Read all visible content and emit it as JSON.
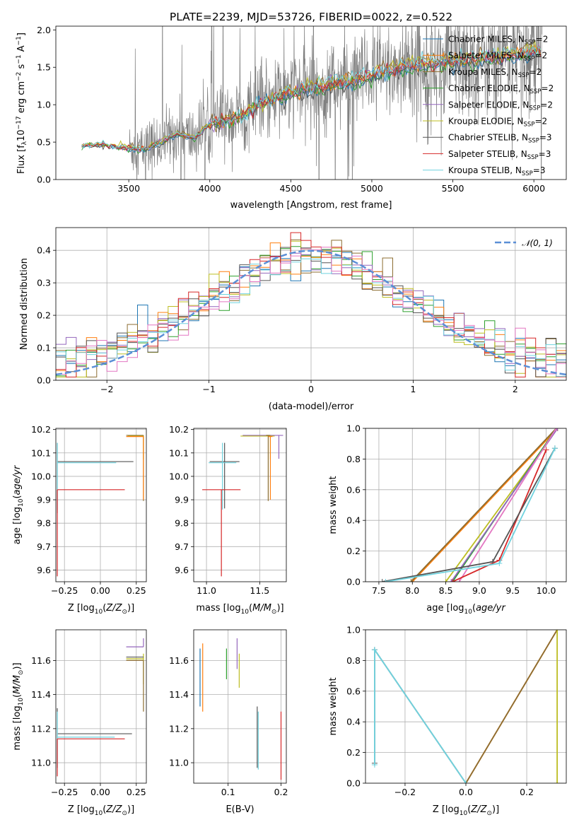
{
  "figure": {
    "title": "PLATE=2239, MJD=53726, FIBERID=0022, z=0.522"
  },
  "colors": {
    "Chabrier MILES": "#1f77b4",
    "Salpeter MILES": "#ff7f0e",
    "Kroupa MILES": "#8c6d31",
    "Chabrier ELODIE": "#2ca02c",
    "Salpeter ELODIE": "#9467bd",
    "Kroupa ELODIE": "#bcbd22",
    "Chabrier STELIB": "#555555",
    "Salpeter STELIB": "#d62728",
    "Kroupa STELIB": "#6fd3df",
    "data": "#808080",
    "gauss": "#5b8fd6",
    "pink": "#e377c2"
  },
  "chart_data": [
    {
      "id": "spectrum",
      "type": "line",
      "xlabel": "wavelength [Angstrom, rest frame]",
      "ylabel": "Flux [f$_\\lambda$10$^{-17}$ erg cm$^{-2}$ s$^{-1}$ A$^{-1}$]",
      "ylabel_parts": [
        "Flux [f",
        "λ",
        "10",
        "−17",
        " erg cm",
        "−2",
        " s",
        "−1",
        " A",
        "−1",
        "]"
      ],
      "xlim": [
        3050,
        6200
      ],
      "ylim": [
        0,
        2.05
      ],
      "xticks": [
        3500,
        4000,
        4500,
        5000,
        5500,
        6000
      ],
      "yticks": [
        0.0,
        0.5,
        1.0,
        1.5,
        2.0
      ],
      "ytick_labels": [
        "0.0",
        "0.5",
        "1.0",
        "1.5",
        "2.0"
      ],
      "legend": [
        {
          "base": "Chabrier MILES, N",
          "sub": "SSP",
          "tail": "=2"
        },
        {
          "base": "Salpeter MILES, N",
          "sub": "SSP",
          "tail": "=2"
        },
        {
          "base": "Kroupa MILES, N",
          "sub": "SSP",
          "tail": "=2"
        },
        {
          "base": "Chabrier ELODIE, N",
          "sub": "SSP",
          "tail": "=2"
        },
        {
          "base": "Salpeter ELODIE, N",
          "sub": "SSP",
          "tail": "=2"
        },
        {
          "base": "Kroupa ELODIE, N",
          "sub": "SSP",
          "tail": "=2"
        },
        {
          "base": "Chabrier STELIB, N",
          "sub": "SSP",
          "tail": "=3"
        },
        {
          "base": "Salpeter STELIB, N",
          "sub": "SSP",
          "tail": "=3"
        },
        {
          "base": "Kroupa STELIB, N",
          "sub": "SSP",
          "tail": "=3"
        }
      ],
      "legend_placement": "upper-right",
      "data_range": [
        3210,
        6050
      ],
      "model_curve": {
        "x": [
          3210,
          3300,
          3400,
          3500,
          3600,
          3700,
          3800,
          3900,
          4000,
          4100,
          4200,
          4300,
          4400,
          4500,
          4600,
          4700,
          4800,
          4900,
          5000,
          5100,
          5200,
          5300,
          5400,
          5500,
          5600,
          5700,
          5800,
          5900,
          6000,
          6050
        ],
        "y": [
          0.45,
          0.47,
          0.45,
          0.42,
          0.4,
          0.5,
          0.62,
          0.55,
          0.75,
          0.78,
          0.85,
          1.0,
          1.08,
          1.15,
          1.22,
          1.25,
          1.3,
          1.32,
          1.4,
          1.45,
          1.5,
          1.55,
          1.55,
          1.58,
          1.6,
          1.62,
          1.65,
          1.68,
          1.72,
          1.7
        ]
      }
    },
    {
      "id": "residuals",
      "type": "step",
      "xlabel": "(data-model)/error",
      "ylabel": "Normed distribution",
      "xlim": [
        -2.5,
        2.5
      ],
      "ylim": [
        0,
        0.47
      ],
      "xticks": [
        -2,
        -1,
        0,
        1,
        2
      ],
      "xtick_labels": [
        "−2",
        "−1",
        "0",
        "1",
        "2"
      ],
      "yticks": [
        0.0,
        0.1,
        0.2,
        0.3,
        0.4
      ],
      "ytick_labels": [
        "0.0",
        "0.1",
        "0.2",
        "0.3",
        "0.4"
      ],
      "legend": [
        {
          "label": "𝒩(0, 1)",
          "style": "dashed"
        }
      ],
      "legend_placement": "upper-right",
      "bins": [
        -2.5,
        2.5,
        50
      ],
      "reference": "N(0,1)"
    },
    {
      "id": "age_vs_Z",
      "type": "errorbar",
      "xlabel_parts": [
        "Z [log",
        "10",
        "(",
        "Z/Z",
        "⊙",
        ")]"
      ],
      "ylabel_parts": [
        "age  [log",
        "10",
        "(",
        "age/yr",
        ")]"
      ],
      "xlim": [
        -0.31,
        0.32
      ],
      "ylim": [
        9.55,
        10.205
      ],
      "xticks": [
        -0.25,
        0.0,
        0.25
      ],
      "xtick_labels": [
        "−0.25",
        "0.00",
        "0.25"
      ],
      "yticks": [
        9.6,
        9.7,
        9.8,
        9.9,
        10.0,
        10.1,
        10.2
      ],
      "ytick_labels": [
        "9.6",
        "9.7",
        "9.8",
        "9.9",
        "10.0",
        "10.1",
        "10.2"
      ],
      "points": [
        {
          "series": "Chabrier STELIB",
          "x": -0.3,
          "xerr": [
            0,
            0.53
          ],
          "y": 10.063,
          "yerr": [
            0.22,
            0.08
          ]
        },
        {
          "series": "Kroupa STELIB",
          "x": -0.3,
          "xerr": [
            0,
            0.41
          ],
          "y": 10.058,
          "yerr": [
            0.2,
            0.085
          ]
        },
        {
          "series": "Salpeter STELIB",
          "x": -0.3,
          "xerr": [
            0,
            0.47
          ],
          "y": 9.943,
          "yerr": [
            0.37,
            0.0
          ]
        },
        {
          "series": "Kroupa MILES",
          "x": 0.3,
          "xerr": [
            0.12,
            0
          ],
          "y": 10.175,
          "yerr": [
            0.28,
            0
          ]
        },
        {
          "series": "Kroupa ELODIE",
          "x": 0.3,
          "xerr": [
            0.11,
            0
          ],
          "y": 10.172,
          "yerr": [
            0.1,
            0
          ]
        },
        {
          "series": "Salpeter MILES",
          "x": 0.3,
          "xerr": [
            0.12,
            0
          ],
          "y": 10.17,
          "yerr": [
            0.27,
            0
          ]
        }
      ]
    },
    {
      "id": "age_vs_mass",
      "type": "errorbar",
      "xlabel_parts": [
        "mass [log",
        "10",
        "(",
        "M/M",
        "⊙",
        ")]"
      ],
      "ylabel_parts": [],
      "xlim": [
        10.88,
        11.75
      ],
      "ylim": [
        9.55,
        10.205
      ],
      "xticks": [
        11.0,
        11.5
      ],
      "xtick_labels": [
        "11.0",
        "11.5"
      ],
      "yticks": [
        9.6,
        9.7,
        9.8,
        9.9,
        10.0,
        10.1,
        10.2
      ],
      "ytick_labels": [
        "9.6",
        "9.7",
        "9.8",
        "9.9",
        "10.0",
        "10.1",
        "10.2"
      ],
      "points": [
        {
          "series": "Chabrier STELIB",
          "x": 11.17,
          "xerr": [
            0.14,
            0.14
          ],
          "y": 10.063,
          "yerr": [
            0.2,
            0.08
          ]
        },
        {
          "series": "Kroupa STELIB",
          "x": 11.15,
          "xerr": [
            0.13,
            0.13
          ],
          "y": 10.058,
          "yerr": [
            0.2,
            0.085
          ]
        },
        {
          "series": "Salpeter STELIB",
          "x": 11.14,
          "xerr": [
            0.18,
            0.18
          ],
          "y": 9.943,
          "yerr": [
            0.37,
            0.0
          ]
        },
        {
          "series": "Salpeter ELODIE",
          "x": 11.68,
          "xerr": [
            0.34,
            0.04
          ],
          "y": 10.175,
          "yerr": [
            0.1,
            0
          ]
        },
        {
          "series": "Kroupa ELODIE",
          "x": 11.6,
          "xerr": [
            0.28,
            0.04
          ],
          "y": 10.172,
          "yerr": [
            0.1,
            0
          ]
        },
        {
          "series": "Kroupa MILES",
          "x": 11.58,
          "xerr": [
            0.02,
            0.02
          ],
          "y": 10.175,
          "yerr": [
            0.28,
            0
          ]
        },
        {
          "series": "Salpeter MILES",
          "x": 11.6,
          "xerr": [
            0.02,
            0.02
          ],
          "y": 10.17,
          "yerr": [
            0.27,
            0
          ]
        }
      ]
    },
    {
      "id": "mass_weight_vs_age",
      "type": "line",
      "xlabel_parts": [
        "age  [log",
        "10",
        "(",
        "age/yr",
        ")]"
      ],
      "ylabel": "mass weight",
      "xlim": [
        7.3,
        10.3
      ],
      "ylim": [
        0,
        1.0
      ],
      "xticks": [
        7.5,
        8.0,
        8.5,
        9.0,
        9.5,
        10.0
      ],
      "xtick_labels": [
        "7.5",
        "8.0",
        "8.5",
        "9.0",
        "9.5",
        "10.0"
      ],
      "yticks": [
        0.0,
        0.2,
        0.4,
        0.6,
        0.8,
        1.0
      ],
      "ytick_labels": [
        "0.0",
        "0.2",
        "0.4",
        "0.6",
        "0.8",
        "1.0"
      ],
      "series": [
        {
          "name": "Salpeter MILES",
          "x": [
            8.0,
            10.17
          ],
          "y": [
            0.0,
            1.0
          ]
        },
        {
          "name": "Kroupa MILES",
          "x": [
            7.98,
            10.15
          ],
          "y": [
            0.0,
            1.0
          ]
        },
        {
          "name": "Kroupa ELODIE",
          "x": [
            8.5,
            10.17
          ],
          "y": [
            0.0,
            1.0
          ]
        },
        {
          "name": "Chabrier ELODIE",
          "x": [
            8.6,
            10.15
          ],
          "y": [
            0.0,
            1.0
          ]
        },
        {
          "name": "Salpeter ELODIE",
          "x": [
            8.58,
            10.17
          ],
          "y": [
            0.0,
            1.0
          ]
        },
        {
          "name": "pink",
          "x": [
            8.7,
            10.15
          ],
          "y": [
            0.0,
            1.0
          ]
        },
        {
          "name": "Salpeter STELIB",
          "x": [
            8.6,
            9.3,
            10.0
          ],
          "y": [
            0.0,
            0.14,
            0.86
          ]
        },
        {
          "name": "Chabrier STELIB",
          "x": [
            7.55,
            9.2,
            10.13
          ],
          "y": [
            0.0,
            0.13,
            0.87
          ]
        },
        {
          "name": "Kroupa STELIB",
          "x": [
            7.6,
            9.3,
            10.13
          ],
          "y": [
            0.0,
            0.12,
            0.87
          ]
        }
      ]
    },
    {
      "id": "mass_vs_Z",
      "type": "errorbar",
      "xlabel_parts": [
        "Z [log",
        "10",
        "(",
        "Z/Z",
        "⊙",
        ")]"
      ],
      "ylabel_parts": [
        "mass [log",
        "10",
        "(",
        "M/M",
        "⊙",
        ")]"
      ],
      "xlim": [
        -0.31,
        0.32
      ],
      "ylim": [
        10.88,
        11.78
      ],
      "xticks": [
        -0.25,
        0.0,
        0.25
      ],
      "xtick_labels": [
        "−0.25",
        "0.00",
        "0.25"
      ],
      "yticks": [
        11.0,
        11.2,
        11.4,
        11.6
      ],
      "ytick_labels": [
        "11.0",
        "11.2",
        "11.4",
        "11.6"
      ],
      "points": [
        {
          "series": "Chabrier STELIB",
          "x": -0.3,
          "xerr": [
            0,
            0.52
          ],
          "y": 11.17,
          "yerr": [
            0.2,
            0.15
          ]
        },
        {
          "series": "Kroupa STELIB",
          "x": -0.3,
          "xerr": [
            0,
            0.4
          ],
          "y": 11.15,
          "yerr": [
            0.18,
            0.15
          ]
        },
        {
          "series": "Salpeter STELIB",
          "x": -0.3,
          "xerr": [
            0,
            0.47
          ],
          "y": 11.14,
          "yerr": [
            0.22,
            0.0
          ]
        },
        {
          "series": "Salpeter ELODIE",
          "x": 0.3,
          "xerr": [
            0.12,
            0
          ],
          "y": 11.68,
          "yerr": [
            0.0,
            0.05
          ]
        },
        {
          "series": "Kroupa ELODIE",
          "x": 0.3,
          "xerr": [
            0.12,
            0
          ],
          "y": 11.61,
          "yerr": [
            0.15,
            0.03
          ]
        },
        {
          "series": "Kroupa MILES",
          "x": 0.3,
          "xerr": [
            0.12,
            0
          ],
          "y": 11.6,
          "yerr": [
            0.3,
            0.0
          ]
        },
        {
          "series": "Chabrier STELIB",
          "x": 0.3,
          "xerr": [
            0.12,
            0
          ],
          "y": 11.62,
          "yerr": [
            0,
            0
          ]
        }
      ]
    },
    {
      "id": "mass_vs_ebv",
      "type": "errorbar",
      "xlabel": "E(B-V)",
      "ylabel_parts": [],
      "xlim": [
        0.035,
        0.21
      ],
      "ylim": [
        10.88,
        11.78
      ],
      "xticks": [
        0.1,
        0.2
      ],
      "xtick_labels": [
        "0.1",
        "0.2"
      ],
      "yticks": [
        11.0,
        11.2,
        11.4,
        11.6
      ],
      "ytick_labels": [
        "11.0",
        "11.2",
        "11.4",
        "11.6"
      ],
      "points": [
        {
          "series": "Chabrier MILES",
          "x": 0.047,
          "y": 11.5,
          "yerr": [
            0.17,
            0.17
          ]
        },
        {
          "series": "Salpeter MILES",
          "x": 0.052,
          "y": 11.5,
          "yerr": [
            0.2,
            0.2
          ]
        },
        {
          "series": "Chabrier ELODIE",
          "x": 0.097,
          "y": 11.58,
          "yerr": [
            0.09,
            0.09
          ]
        },
        {
          "series": "Salpeter ELODIE",
          "x": 0.117,
          "y": 11.64,
          "yerr": [
            0.09,
            0.09
          ]
        },
        {
          "series": "Kroupa ELODIE",
          "x": 0.121,
          "y": 11.54,
          "yerr": [
            0.1,
            0.1
          ]
        },
        {
          "series": "Chabrier STELIB",
          "x": 0.155,
          "y": 11.15,
          "yerr": [
            0.18,
            0.18
          ]
        },
        {
          "series": "Kroupa STELIB",
          "x": 0.157,
          "y": 11.13,
          "yerr": [
            0.17,
            0.17
          ]
        },
        {
          "series": "Salpeter STELIB",
          "x": 0.2,
          "y": 11.1,
          "yerr": [
            0.2,
            0.2
          ]
        }
      ]
    },
    {
      "id": "mass_weight_vs_Z",
      "type": "line",
      "xlabel_parts": [
        "Z [log",
        "10",
        "(",
        "Z/Z",
        "⊙",
        ")]"
      ],
      "ylabel": "mass weight",
      "xlim": [
        -0.33,
        0.33
      ],
      "ylim": [
        0,
        1.0
      ],
      "xticks": [
        -0.2,
        0.0,
        0.2
      ],
      "xtick_labels": [
        "−0.2",
        "0.0",
        "0.2"
      ],
      "yticks": [
        0.0,
        0.2,
        0.4,
        0.6,
        0.8,
        1.0
      ],
      "ytick_labels": [
        "0.0",
        "0.2",
        "0.4",
        "0.6",
        "0.8",
        "1.0"
      ],
      "series": [
        {
          "name": "Salpeter MILES",
          "x": [
            0.0,
            0.3
          ],
          "y": [
            0.0,
            1.0
          ]
        },
        {
          "name": "Kroupa MILES",
          "x": [
            0.0,
            0.3
          ],
          "y": [
            0.0,
            1.0
          ]
        },
        {
          "name": "Kroupa ELODIE",
          "x": [
            0.3,
            0.3
          ],
          "y": [
            0.0,
            1.0
          ]
        },
        {
          "name": "Chabrier STELIB",
          "x": [
            -0.3,
            -0.3,
            0.0
          ],
          "y": [
            0.13,
            0.87,
            0.0
          ]
        },
        {
          "name": "Kroupa STELIB",
          "x": [
            -0.3,
            -0.3,
            0.0
          ],
          "y": [
            0.12,
            0.87,
            0.0
          ]
        }
      ]
    }
  ]
}
